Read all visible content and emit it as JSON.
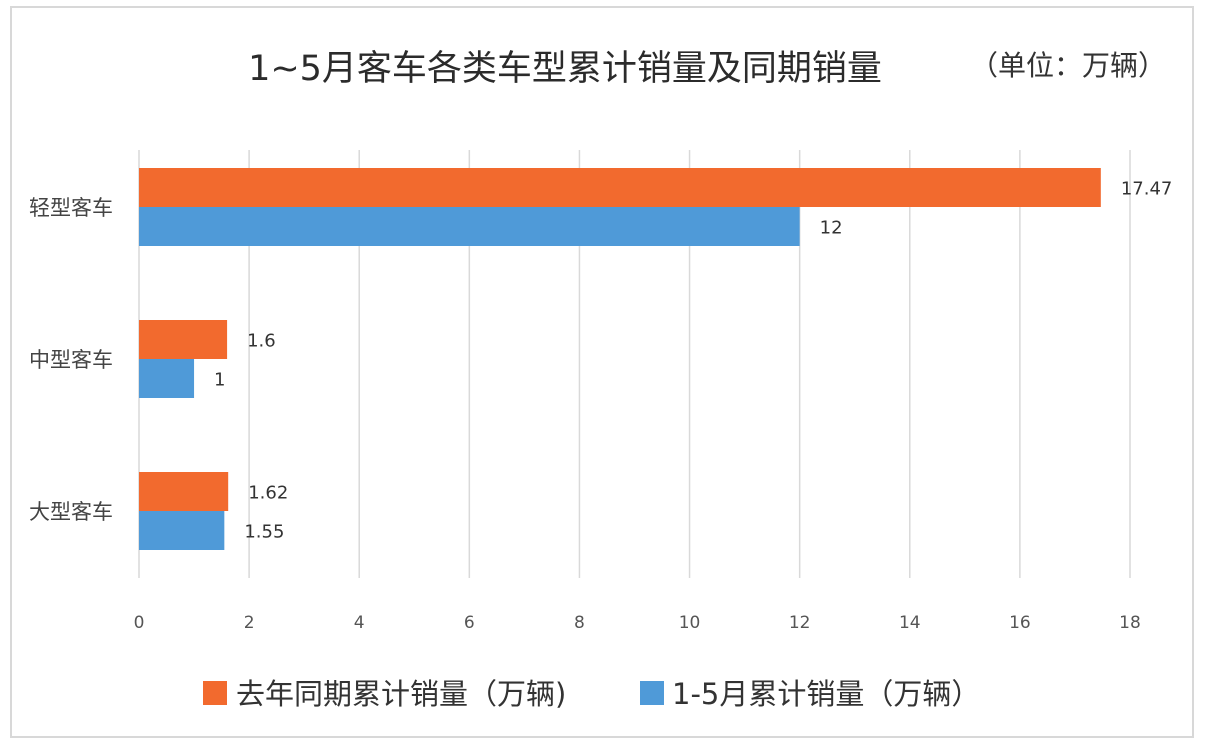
{
  "chart_data": {
    "type": "bar",
    "orientation": "horizontal",
    "title": "1~5月客车各类车型累计销量及同期销量",
    "unit_note": "（单位：万辆）",
    "categories": [
      "轻型客车",
      "中型客车",
      "大型客车"
    ],
    "series": [
      {
        "name": "去年同期累计销量（万辆)",
        "color": "#f26a2e",
        "values": [
          17.47,
          1.6,
          1.62
        ],
        "labels": [
          "17.47",
          "1.6",
          "1.62"
        ]
      },
      {
        "name": "1-5月累计销量（万辆）",
        "color": "#4f9ad8",
        "values": [
          12,
          1,
          1.55
        ],
        "labels": [
          "12",
          "1",
          "1.55"
        ]
      }
    ],
    "xlim": [
      0,
      18
    ],
    "xticks": [
      0,
      2,
      4,
      6,
      8,
      10,
      12,
      14,
      16,
      18
    ],
    "xtick_labels": [
      "0",
      "2",
      "4",
      "6",
      "8",
      "10",
      "12",
      "14",
      "16",
      "18"
    ],
    "grid": "vertical",
    "legend_position": "bottom",
    "xlabel": "",
    "ylabel": ""
  }
}
